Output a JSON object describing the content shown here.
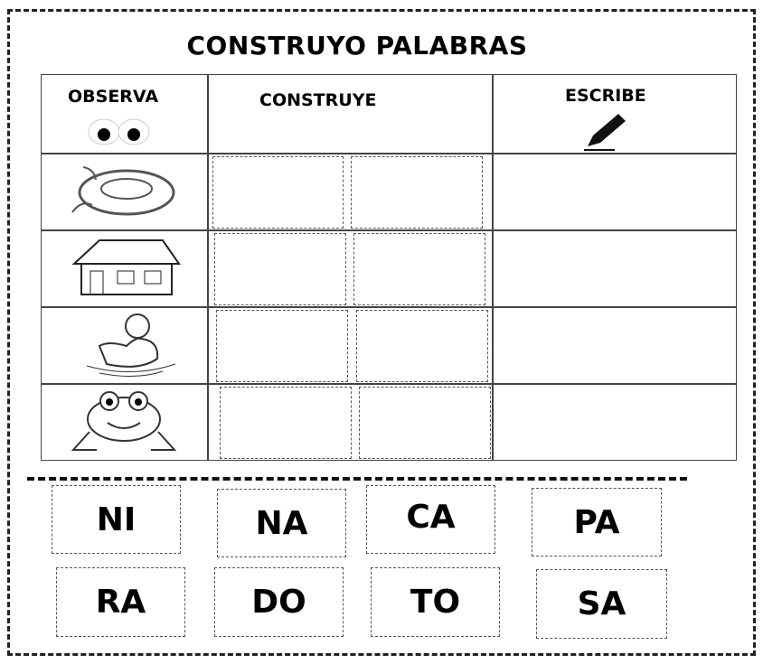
{
  "title": "CONSTRUYO PALABRAS",
  "headers": [
    "OBSERVA",
    "CONSTRUYE",
    "ESCRIBE"
  ],
  "syllables": [
    [
      "NI",
      "NA",
      "CA",
      "PA"
    ],
    [
      "RA",
      "DO",
      "TO",
      "SA"
    ]
  ]
}
